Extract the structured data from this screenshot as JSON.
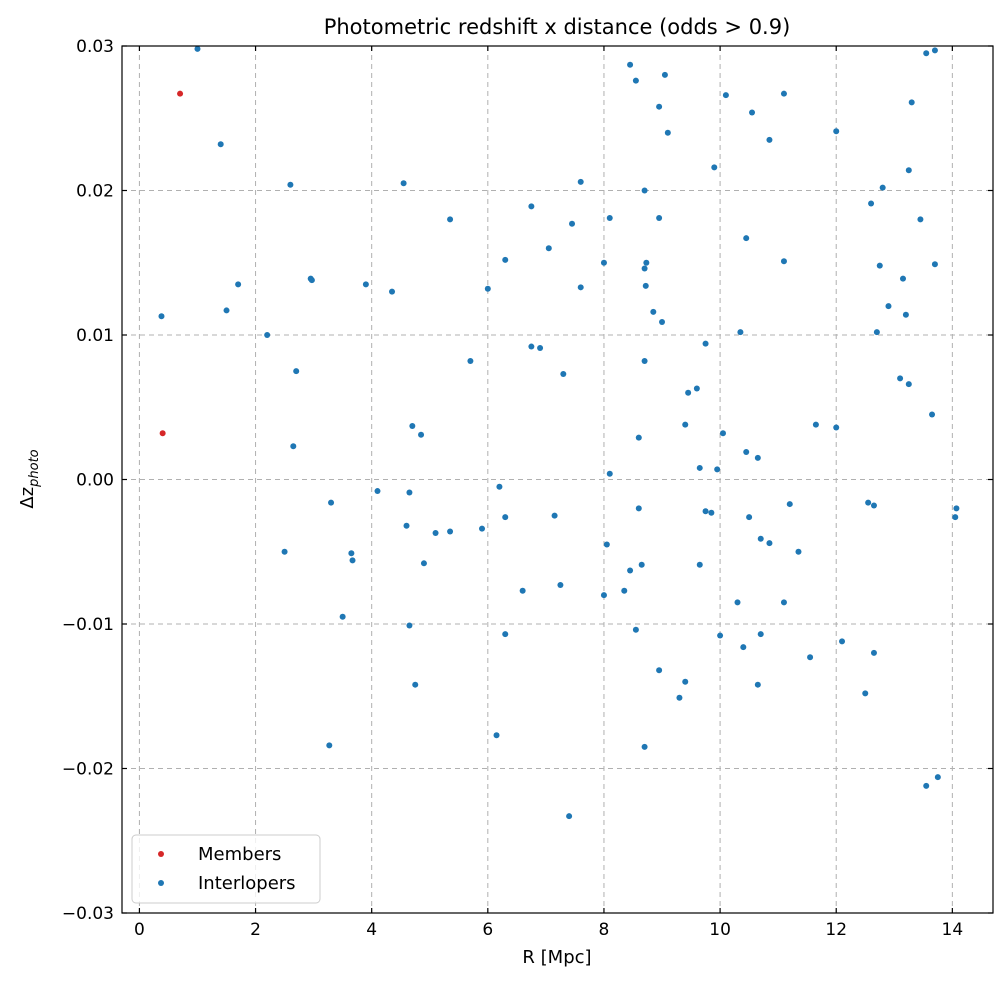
{
  "chart_data": {
    "type": "scatter",
    "title": "Photometric redshift x distance (odds > 0.9)",
    "xlabel": "R [Mpc]",
    "ylabel_base": "Δz",
    "ylabel_sub": "photo",
    "xlim": [
      -0.3,
      14.7
    ],
    "ylim": [
      -0.03,
      0.03
    ],
    "xticks": [
      0,
      2,
      4,
      6,
      8,
      10,
      12,
      14
    ],
    "xtick_labels": [
      "0",
      "2",
      "4",
      "6",
      "8",
      "10",
      "12",
      "14"
    ],
    "yticks": [
      -0.03,
      -0.02,
      -0.01,
      0.0,
      0.01,
      0.02,
      0.03
    ],
    "ytick_labels": [
      "−0.03",
      "−0.02",
      "−0.01",
      "0.00",
      "0.01",
      "0.02",
      "0.03"
    ],
    "grid": true,
    "legend_position": "lower-left",
    "series": [
      {
        "name": "Members",
        "color": "#d62728",
        "points": [
          [
            0.7,
            0.0267
          ],
          [
            0.4,
            0.0032
          ]
        ]
      },
      {
        "name": "Interlopers",
        "color": "#1f77b4",
        "points": [
          [
            1.0,
            0.0298
          ],
          [
            1.4,
            0.0232
          ],
          [
            0.38,
            0.0113
          ],
          [
            1.5,
            0.0117
          ],
          [
            1.7,
            0.0135
          ],
          [
            2.2,
            0.01
          ],
          [
            2.6,
            0.0204
          ],
          [
            2.95,
            0.0139
          ],
          [
            2.97,
            0.0138
          ],
          [
            2.7,
            0.0075
          ],
          [
            2.65,
            0.0023
          ],
          [
            2.5,
            -0.005
          ],
          [
            3.3,
            -0.0016
          ],
          [
            3.65,
            -0.0051
          ],
          [
            3.67,
            -0.0056
          ],
          [
            3.5,
            -0.0095
          ],
          [
            3.27,
            -0.0184
          ],
          [
            3.9,
            0.0135
          ],
          [
            4.1,
            -0.0008
          ],
          [
            4.35,
            0.013
          ],
          [
            4.55,
            0.0205
          ],
          [
            4.7,
            0.0037
          ],
          [
            4.85,
            0.0031
          ],
          [
            4.65,
            -0.0009
          ],
          [
            4.6,
            -0.0032
          ],
          [
            4.9,
            -0.0058
          ],
          [
            4.65,
            -0.0101
          ],
          [
            4.75,
            -0.0142
          ],
          [
            5.1,
            -0.0037
          ],
          [
            5.35,
            -0.0036
          ],
          [
            5.35,
            0.018
          ],
          [
            5.7,
            0.0082
          ],
          [
            5.9,
            -0.0034
          ],
          [
            6.0,
            0.0132
          ],
          [
            6.2,
            -0.0005
          ],
          [
            6.3,
            0.0152
          ],
          [
            6.3,
            -0.0026
          ],
          [
            6.3,
            -0.0107
          ],
          [
            6.15,
            -0.0177
          ],
          [
            6.6,
            -0.0077
          ],
          [
            6.75,
            0.0189
          ],
          [
            6.75,
            0.0092
          ],
          [
            6.9,
            0.0091
          ],
          [
            7.05,
            0.016
          ],
          [
            7.15,
            -0.0025
          ],
          [
            7.25,
            -0.0073
          ],
          [
            7.3,
            0.0073
          ],
          [
            7.4,
            -0.0233
          ],
          [
            7.45,
            0.0177
          ],
          [
            7.6,
            0.0206
          ],
          [
            7.6,
            0.0133
          ],
          [
            8.0,
            0.015
          ],
          [
            8.05,
            -0.0045
          ],
          [
            8.0,
            -0.008
          ],
          [
            8.1,
            0.0181
          ],
          [
            8.1,
            0.0004
          ],
          [
            8.35,
            -0.0077
          ],
          [
            8.45,
            0.0287
          ],
          [
            8.55,
            0.0276
          ],
          [
            8.45,
            -0.0063
          ],
          [
            8.55,
            -0.0104
          ],
          [
            8.6,
            0.0029
          ],
          [
            8.6,
            -0.002
          ],
          [
            8.65,
            -0.0059
          ],
          [
            8.7,
            0.02
          ],
          [
            8.7,
            0.0146
          ],
          [
            8.72,
            0.0134
          ],
          [
            8.73,
            0.015
          ],
          [
            8.7,
            0.0082
          ],
          [
            8.7,
            -0.0185
          ],
          [
            8.85,
            0.0116
          ],
          [
            8.95,
            0.0181
          ],
          [
            8.95,
            0.0258
          ],
          [
            9.05,
            0.028
          ],
          [
            9.0,
            0.0109
          ],
          [
            9.1,
            0.024
          ],
          [
            8.95,
            -0.0132
          ],
          [
            9.3,
            -0.0151
          ],
          [
            9.4,
            0.0038
          ],
          [
            9.4,
            -0.014
          ],
          [
            9.45,
            0.006
          ],
          [
            9.6,
            0.0063
          ],
          [
            9.65,
            0.0008
          ],
          [
            9.65,
            -0.0059
          ],
          [
            9.75,
            0.0094
          ],
          [
            9.75,
            -0.0022
          ],
          [
            9.85,
            -0.0023
          ],
          [
            9.9,
            0.0216
          ],
          [
            9.95,
            0.0007
          ],
          [
            10.0,
            -0.0108
          ],
          [
            10.05,
            0.0032
          ],
          [
            10.1,
            0.0266
          ],
          [
            10.3,
            -0.0085
          ],
          [
            10.35,
            0.0102
          ],
          [
            10.4,
            -0.0116
          ],
          [
            10.45,
            0.0167
          ],
          [
            10.45,
            0.0019
          ],
          [
            10.5,
            -0.0026
          ],
          [
            10.55,
            0.0254
          ],
          [
            10.65,
            0.0015
          ],
          [
            10.7,
            -0.0041
          ],
          [
            10.7,
            -0.0107
          ],
          [
            10.65,
            -0.0142
          ],
          [
            10.85,
            0.0235
          ],
          [
            10.85,
            -0.0044
          ],
          [
            11.1,
            0.0267
          ],
          [
            11.1,
            0.0151
          ],
          [
            11.1,
            -0.0085
          ],
          [
            11.2,
            -0.0017
          ],
          [
            11.35,
            -0.005
          ],
          [
            11.55,
            -0.0123
          ],
          [
            11.65,
            0.0038
          ],
          [
            12.0,
            0.0241
          ],
          [
            12.0,
            0.0036
          ],
          [
            12.1,
            -0.0112
          ],
          [
            12.5,
            -0.0148
          ],
          [
            12.55,
            -0.0016
          ],
          [
            12.6,
            0.0191
          ],
          [
            12.65,
            -0.0018
          ],
          [
            12.65,
            -0.012
          ],
          [
            12.7,
            0.0102
          ],
          [
            12.75,
            0.0148
          ],
          [
            12.8,
            0.0202
          ],
          [
            12.9,
            0.012
          ],
          [
            13.1,
            0.007
          ],
          [
            13.15,
            0.0139
          ],
          [
            13.2,
            0.0114
          ],
          [
            13.25,
            0.0214
          ],
          [
            13.3,
            0.0261
          ],
          [
            13.25,
            0.0066
          ],
          [
            13.45,
            0.018
          ],
          [
            13.55,
            0.0295
          ],
          [
            13.55,
            -0.0212
          ],
          [
            13.65,
            0.0045
          ],
          [
            13.7,
            0.0297
          ],
          [
            13.7,
            0.0149
          ],
          [
            13.75,
            -0.0206
          ],
          [
            14.05,
            -0.0026
          ],
          [
            14.07,
            -0.002
          ]
        ]
      }
    ]
  }
}
